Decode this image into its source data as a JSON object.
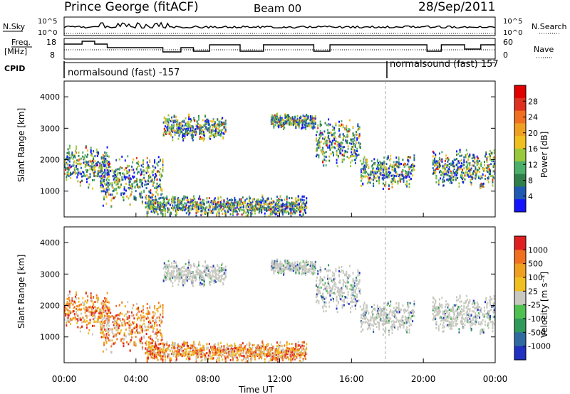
{
  "header": {
    "title": "Prince George (fitACF)",
    "beam": "Beam 00",
    "date": "28/Sep/2011"
  },
  "panels": {
    "nsky": {
      "left_label": "N.Sky",
      "ticks": [
        "10^5",
        "10^0"
      ],
      "right_label": "N.Search",
      "right_ticks": [
        "10^5",
        "10^0"
      ]
    },
    "freq": {
      "left_label_1": "Freq.",
      "left_label_2": "[MHz]",
      "ticks": [
        "18",
        "8"
      ],
      "right_label": "Nave",
      "right_ticks": [
        "60",
        "0"
      ]
    },
    "cpid": {
      "label": "CPID",
      "segments": [
        "normalsound (fast) -157",
        "normalsound (fast) 157"
      ]
    }
  },
  "colors": {
    "power": [
      "#1414ff",
      "#1e5ab4",
      "#2f7f4a",
      "#4caf6a",
      "#9ac83c",
      "#f0c020",
      "#f0a020",
      "#f07020",
      "#e03020",
      "#e00000"
    ],
    "velocity": [
      "#2030c0",
      "#2f6aa0",
      "#2f9a5a",
      "#50c050",
      "#c8c8c0",
      "#f0c020",
      "#f0a020",
      "#f07020",
      "#e02020"
    ],
    "grey": "#c8c8c0"
  },
  "chart_data": [
    {
      "type": "heatmap",
      "ylabel": "Slant Range [km]",
      "ylim": [
        180,
        4500
      ],
      "y_ticks": [
        1000,
        2000,
        3000,
        4000
      ],
      "xlim": [
        0,
        24
      ],
      "x_ticks_hours": [
        0,
        4,
        8,
        12,
        16,
        20,
        24
      ],
      "colorbar": {
        "label": "Power [dB]",
        "tick_labels": [
          "28",
          "24",
          "20",
          "16",
          "12",
          "8",
          "4"
        ],
        "range": [
          0,
          30
        ]
      },
      "echo_regions_approx": [
        {
          "t_start": 0.0,
          "t_end": 2.5,
          "range_low": 1100,
          "range_high": 2600
        },
        {
          "t_start": 2.0,
          "t_end": 5.5,
          "range_low": 500,
          "range_high": 2200
        },
        {
          "t_start": 4.5,
          "t_end": 13.5,
          "range_low": 200,
          "range_high": 900
        },
        {
          "t_start": 5.5,
          "t_end": 9.0,
          "range_low": 2600,
          "range_high": 3500
        },
        {
          "t_start": 11.5,
          "t_end": 14.0,
          "range_low": 3000,
          "range_high": 3500
        },
        {
          "t_start": 14.0,
          "t_end": 16.5,
          "range_low": 1800,
          "range_high": 3400
        },
        {
          "t_start": 16.5,
          "t_end": 19.5,
          "range_low": 1100,
          "range_high": 2200
        },
        {
          "t_start": 20.5,
          "t_end": 24.0,
          "range_low": 1100,
          "range_high": 2400
        }
      ]
    },
    {
      "type": "heatmap",
      "ylabel": "Slant Range [km]",
      "ylim": [
        180,
        4500
      ],
      "y_ticks": [
        1000,
        2000,
        3000,
        4000
      ],
      "xlim": [
        0,
        24
      ],
      "x_ticks_hours": [
        0,
        4,
        8,
        12,
        16,
        20,
        24
      ],
      "x_tick_labels": [
        "00:00",
        "04:00",
        "08:00",
        "12:00",
        "16:00",
        "20:00",
        "00:00"
      ],
      "xlabel": "Time UT",
      "colorbar": {
        "label": "Velocity [m s⁻¹]",
        "tick_labels": [
          "1000",
          "500",
          "100",
          "25",
          "-25",
          "-100",
          "-500",
          "-1000"
        ]
      }
    }
  ]
}
